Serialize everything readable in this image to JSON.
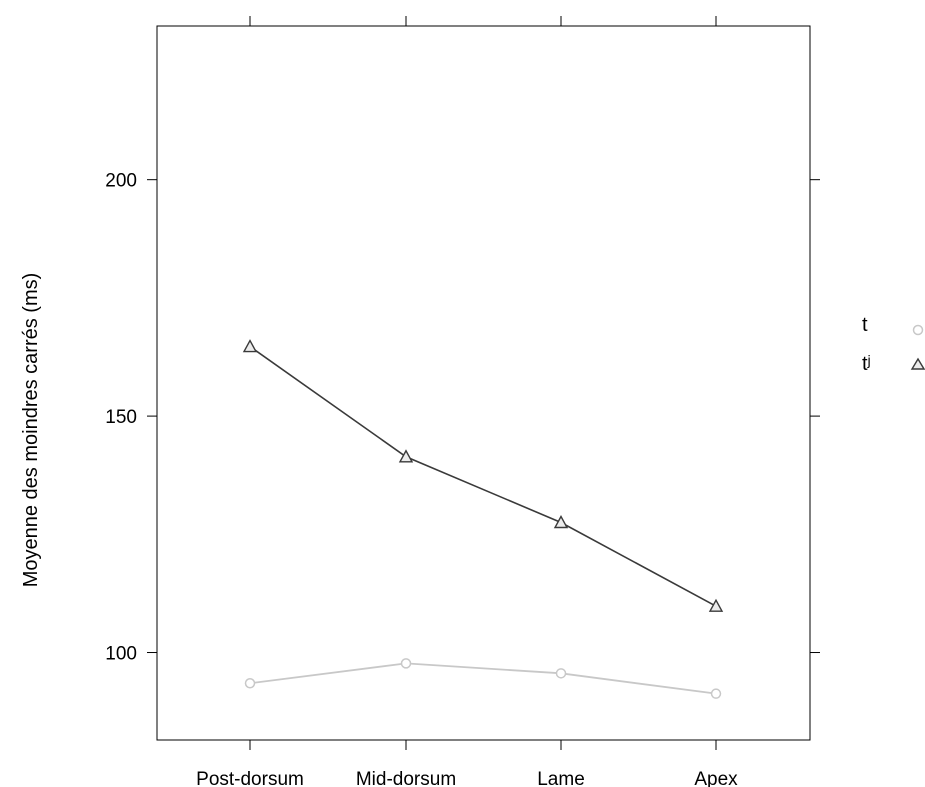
{
  "chart_data": {
    "type": "line",
    "title": "",
    "xlabel": "",
    "ylabel": "Moyenne des moindres carrés (ms)",
    "categories": [
      "Post-dorsum",
      "Mid-dorsum",
      "Lame",
      "Apex"
    ],
    "ylim": [
      81.5,
      232.5
    ],
    "yticks": [
      100,
      150,
      200
    ],
    "grid": false,
    "legend_position": "right",
    "series": [
      {
        "name": "t",
        "marker": "circle",
        "color": "#c8c8c8",
        "values": [
          93.5,
          97.7,
          95.6,
          91.3
        ]
      },
      {
        "name": "tʲ",
        "marker": "triangle",
        "color": "#3a3a3a",
        "values": [
          164.7,
          141.4,
          127.5,
          109.8
        ]
      }
    ]
  }
}
